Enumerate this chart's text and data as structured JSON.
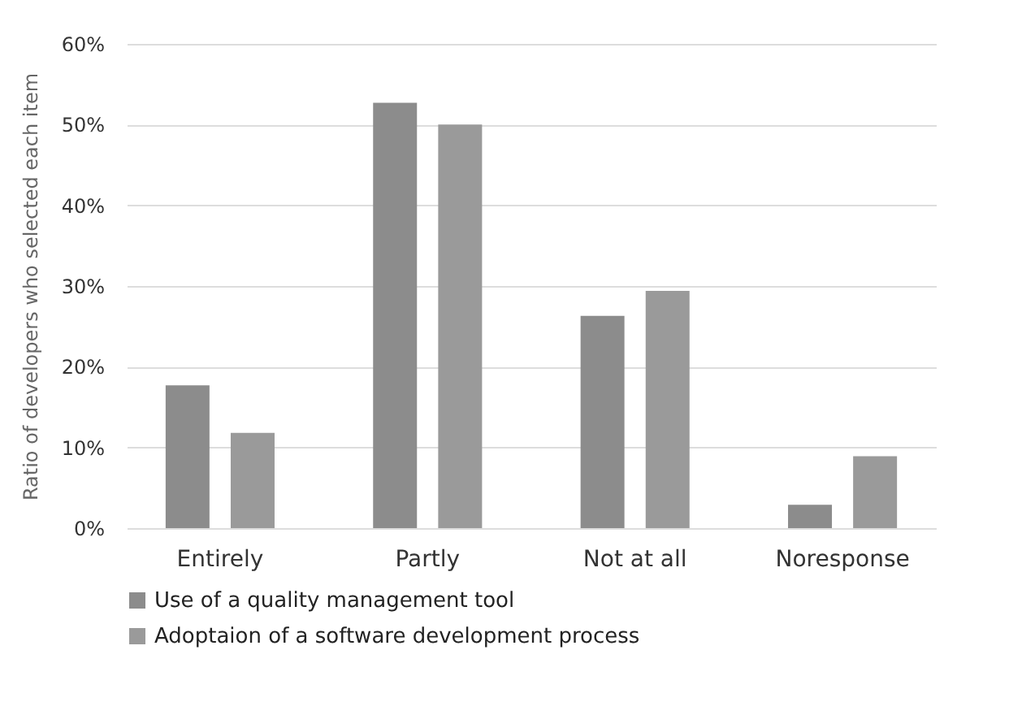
{
  "chart_data": {
    "type": "bar",
    "ylabel": "Ratio of developers who selected each item",
    "categories": [
      "Entirely",
      "Partly",
      "Not at all",
      "Noresponse"
    ],
    "series": [
      {
        "name": "Use of a quality management tool",
        "color": "#8c8c8c",
        "values": [
          17.7,
          52.7,
          26.3,
          2.9
        ]
      },
      {
        "name": "Adoptaion of a software development process",
        "color": "#9a9a9a",
        "values": [
          11.8,
          50,
          29.4,
          8.9
        ]
      }
    ],
    "ylim": [
      0,
      60
    ],
    "yticks": [
      {
        "value": 0,
        "label": "0%"
      },
      {
        "value": 10,
        "label": "10%"
      },
      {
        "value": 20,
        "label": "20%"
      },
      {
        "value": 30,
        "label": "30%"
      },
      {
        "value": 40,
        "label": "40%"
      },
      {
        "value": 50,
        "label": "50%"
      },
      {
        "value": 60,
        "label": "60%"
      }
    ],
    "grid": "y",
    "legend": "bottom"
  }
}
